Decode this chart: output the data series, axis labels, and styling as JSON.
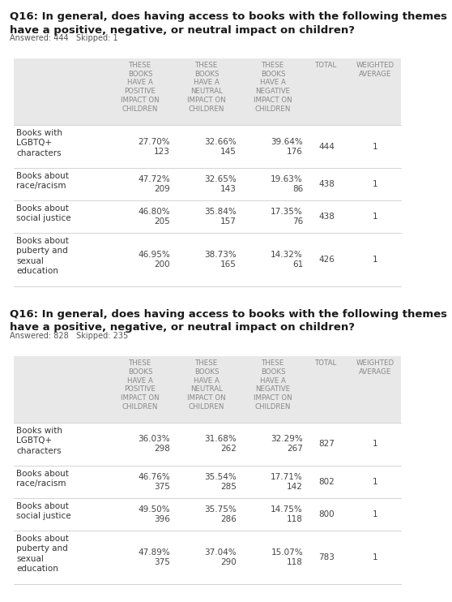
{
  "bg_color": "#ffffff",
  "tables": [
    {
      "title": "Q16: In general, does having access to books with the following themes\nhave a positive, negative, or neutral impact on children?",
      "answered": "Answered: 444   Skipped: 1",
      "rows": [
        {
          "label": "Books with\nLGBTQ+\ncharacters",
          "positive_pct": "27.70%",
          "positive_n": "123",
          "neutral_pct": "32.66%",
          "neutral_n": "145",
          "negative_pct": "39.64%",
          "negative_n": "176",
          "total": "444",
          "weighted": "1"
        },
        {
          "label": "Books about\nrace/racism",
          "positive_pct": "47.72%",
          "positive_n": "209",
          "neutral_pct": "32.65%",
          "neutral_n": "143",
          "negative_pct": "19.63%",
          "negative_n": "86",
          "total": "438",
          "weighted": "1"
        },
        {
          "label": "Books about\nsocial justice",
          "positive_pct": "46.80%",
          "positive_n": "205",
          "neutral_pct": "35.84%",
          "neutral_n": "157",
          "negative_pct": "17.35%",
          "negative_n": "76",
          "total": "438",
          "weighted": "1"
        },
        {
          "label": "Books about\npuberty and\nsexual\neducation",
          "positive_pct": "46.95%",
          "positive_n": "200",
          "neutral_pct": "38.73%",
          "neutral_n": "165",
          "negative_pct": "14.32%",
          "negative_n": "61",
          "total": "426",
          "weighted": "1"
        }
      ]
    },
    {
      "title": "Q16: In general, does having access to books with the following themes\nhave a positive, negative, or neutral impact on children?",
      "answered": "Answered: 828   Skipped: 235",
      "rows": [
        {
          "label": "Books with\nLGBTQ+\ncharacters",
          "positive_pct": "36.03%",
          "positive_n": "298",
          "neutral_pct": "31.68%",
          "neutral_n": "262",
          "negative_pct": "32.29%",
          "negative_n": "267",
          "total": "827",
          "weighted": "1"
        },
        {
          "label": "Books about\nrace/racism",
          "positive_pct": "46.76%",
          "positive_n": "375",
          "neutral_pct": "35.54%",
          "neutral_n": "285",
          "negative_pct": "17.71%",
          "negative_n": "142",
          "total": "802",
          "weighted": "1"
        },
        {
          "label": "Books about\nsocial justice",
          "positive_pct": "49.50%",
          "positive_n": "396",
          "neutral_pct": "35.75%",
          "neutral_n": "286",
          "negative_pct": "14.75%",
          "negative_n": "118",
          "total": "800",
          "weighted": "1"
        },
        {
          "label": "Books about\npuberty and\nsexual\neducation",
          "positive_pct": "47.89%",
          "positive_n": "375",
          "neutral_pct": "37.04%",
          "neutral_n": "290",
          "negative_pct": "15.07%",
          "negative_n": "118",
          "total": "783",
          "weighted": "1"
        }
      ]
    }
  ],
  "col_header_lines": [
    "THESE\nBOOKS\nHAVE A\nPOSITIVE\nIMPACT ON\nCHILDREN",
    "THESE\nBOOKS\nHAVE A\nNEUTRAL\nIMPACT ON\nCHILDREN",
    "THESE\nBOOKS\nHAVE A\nNEGATIVE\nIMPACT ON\nCHILDREN",
    "TOTAL",
    "WEIGHTED\nAVERAGE"
  ]
}
